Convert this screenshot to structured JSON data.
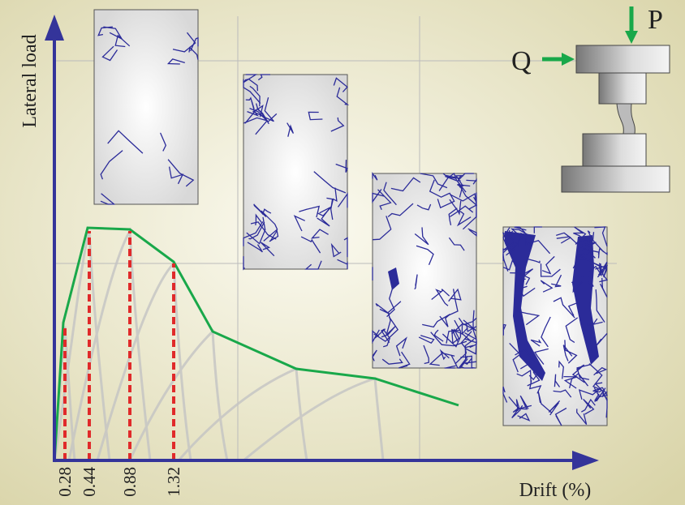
{
  "axes": {
    "y_label": "Lateral load",
    "x_label": "Drift (%)"
  },
  "drift_marks": [
    "0.28",
    "0.44",
    "0.88",
    "1.32"
  ],
  "loads": {
    "vertical": "P",
    "horizontal": "Q"
  }
}
